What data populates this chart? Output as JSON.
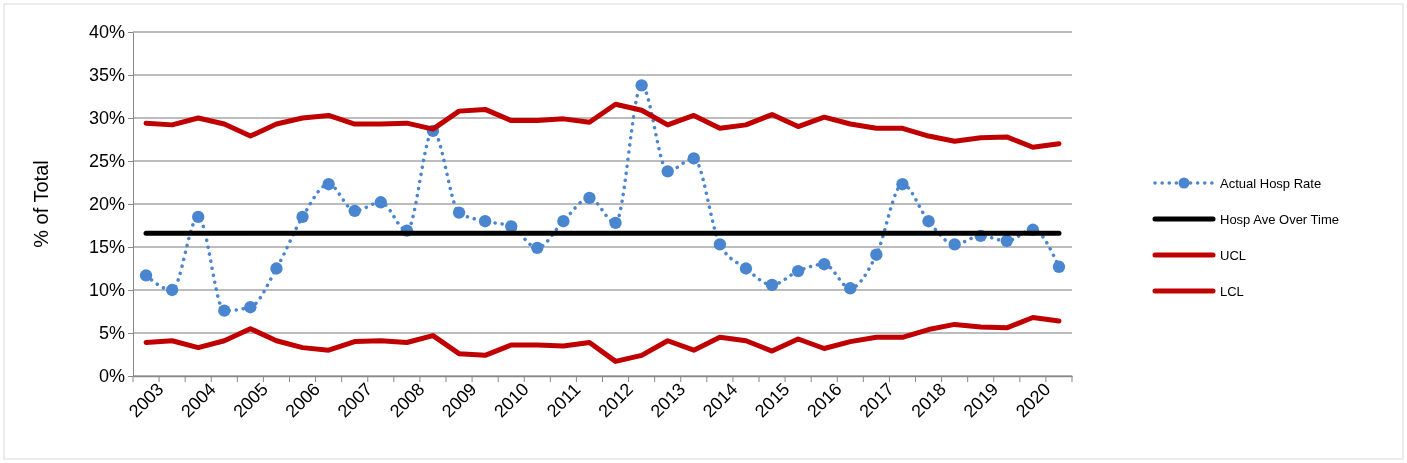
{
  "chart_data": {
    "type": "line",
    "ylabel": "% of Total",
    "categories": [
      "2003",
      null,
      "2004",
      null,
      "2005",
      null,
      "2006",
      null,
      "2007",
      null,
      "2008",
      null,
      "2009",
      null,
      "2010",
      null,
      "2011",
      null,
      "2012",
      null,
      "2013",
      null,
      "2014",
      null,
      "2015",
      null,
      "2016",
      null,
      "2017",
      null,
      "2018",
      null,
      "2019",
      null,
      "2020",
      null
    ],
    "series": [
      {
        "name": "Actual Hosp Rate",
        "color": "#4a86d0",
        "marker": "circle",
        "line_style": "dotted",
        "values": [
          11.7,
          10.0,
          18.5,
          7.6,
          8.0,
          12.5,
          18.5,
          22.3,
          19.2,
          20.2,
          16.9,
          28.5,
          19.0,
          18.0,
          17.4,
          14.9,
          18.0,
          20.7,
          17.8,
          33.8,
          23.8,
          25.3,
          15.3,
          12.5,
          10.6,
          12.2,
          13.0,
          10.2,
          14.1,
          22.3,
          18.0,
          15.3,
          16.3,
          15.7,
          17.0,
          12.7
        ]
      },
      {
        "name": "Hosp Ave Over Time",
        "color": "#000000",
        "marker": "none",
        "line_style": "solid",
        "values": [
          16.6,
          16.6,
          16.6,
          16.6,
          16.6,
          16.6,
          16.6,
          16.6,
          16.6,
          16.6,
          16.6,
          16.6,
          16.6,
          16.6,
          16.6,
          16.6,
          16.6,
          16.6,
          16.6,
          16.6,
          16.6,
          16.6,
          16.6,
          16.6,
          16.6,
          16.6,
          16.6,
          16.6,
          16.6,
          16.6,
          16.6,
          16.6,
          16.6,
          16.6,
          16.6,
          16.6
        ]
      },
      {
        "name": "UCL",
        "color": "#c00000",
        "marker": "none",
        "line_style": "solid",
        "values": [
          29.4,
          29.2,
          30.0,
          29.3,
          27.9,
          29.3,
          30.0,
          30.3,
          29.3,
          29.3,
          29.4,
          28.7,
          30.8,
          31.0,
          29.7,
          29.7,
          29.9,
          29.5,
          31.6,
          30.9,
          29.2,
          30.3,
          28.8,
          29.2,
          30.4,
          29.0,
          30.1,
          29.3,
          28.8,
          28.8,
          27.9,
          27.3,
          27.7,
          27.8,
          26.6,
          27.0
        ]
      },
      {
        "name": "LCL",
        "color": "#c00000",
        "marker": "none",
        "line_style": "solid",
        "values": [
          3.9,
          4.1,
          3.3,
          4.1,
          5.5,
          4.1,
          3.3,
          3.0,
          4.0,
          4.1,
          3.9,
          4.7,
          2.6,
          2.4,
          3.6,
          3.6,
          3.5,
          3.9,
          1.7,
          2.4,
          4.1,
          3.0,
          4.5,
          4.1,
          2.9,
          4.3,
          3.2,
          4.0,
          4.5,
          4.5,
          5.4,
          6.0,
          5.7,
          5.6,
          6.8,
          6.4
        ]
      }
    ],
    "ylim": [
      0,
      40
    ],
    "yticks": [
      {
        "value": 0,
        "label": "0%"
      },
      {
        "value": 5,
        "label": "5%"
      },
      {
        "value": 10,
        "label": "10%"
      },
      {
        "value": 15,
        "label": "15%"
      },
      {
        "value": 20,
        "label": "20%"
      },
      {
        "value": 25,
        "label": "25%"
      },
      {
        "value": 30,
        "label": "30%"
      },
      {
        "value": 35,
        "label": "35%"
      },
      {
        "value": 40,
        "label": "40%"
      }
    ],
    "grid": "y",
    "legend": "right"
  }
}
